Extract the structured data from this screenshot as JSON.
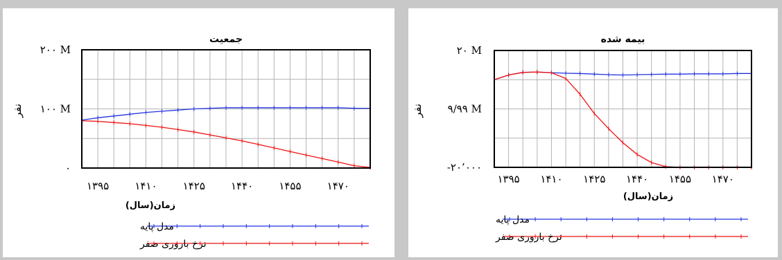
{
  "colors": {
    "base": "#2233dd",
    "zero": "#ee1111"
  },
  "chart_data": [
    {
      "type": "line",
      "title": "جمعیت",
      "ylabel": "نفر",
      "xlabel": "زمان(سال)",
      "xlim": [
        1390,
        1480
      ],
      "ylim": [
        0,
        200
      ],
      "y_ticks": [
        {
          "value": 200,
          "label": "۲۰۰ M"
        },
        {
          "value": 100,
          "label": "۱۰۰ M"
        },
        {
          "value": 0,
          "label": "۰"
        }
      ],
      "x_ticks": [
        {
          "value": 1395,
          "label": "۱۳۹۵"
        },
        {
          "value": 1410,
          "label": "۱۴۱۰"
        },
        {
          "value": 1425,
          "label": "۱۴۲۵"
        },
        {
          "value": 1440,
          "label": "۱۴۴۰"
        },
        {
          "value": 1455,
          "label": "۱۴۵۵"
        },
        {
          "value": 1470,
          "label": "۱۴۷۰"
        }
      ],
      "grid": true,
      "series": [
        {
          "name": "مدل پایه",
          "x": [
            1390,
            1395,
            1400,
            1405,
            1410,
            1415,
            1420,
            1425,
            1430,
            1435,
            1440,
            1445,
            1450,
            1455,
            1460,
            1465,
            1470,
            1475,
            1480
          ],
          "y": [
            81,
            85,
            88,
            91,
            94,
            96,
            98,
            100,
            101,
            102,
            102,
            102,
            102,
            102,
            102,
            102,
            102,
            101,
            101
          ]
        },
        {
          "name": "نرخ باروری صفر",
          "x": [
            1390,
            1395,
            1400,
            1405,
            1410,
            1415,
            1420,
            1425,
            1430,
            1435,
            1440,
            1445,
            1450,
            1455,
            1460,
            1465,
            1470,
            1475,
            1480
          ],
          "y": [
            80,
            79,
            77,
            75,
            72,
            69,
            65,
            61,
            56,
            51,
            46,
            40,
            34,
            28,
            22,
            16,
            10,
            4,
            1
          ]
        }
      ]
    },
    {
      "type": "line",
      "title": "بیمه شده",
      "ylabel": "نفر",
      "xlabel": "زمان(سال)",
      "xlim": [
        1390,
        1480
      ],
      "ylim": [
        -20000,
        20000000
      ],
      "y_ticks": [
        {
          "value": 20000000,
          "label": "۲۰ M"
        },
        {
          "value": 9990000,
          "label": "۹/۹۹ M"
        },
        {
          "value": -20000,
          "label": "-۲۰٬۰۰۰"
        }
      ],
      "x_ticks": [
        {
          "value": 1395,
          "label": "۱۳۹۵"
        },
        {
          "value": 1410,
          "label": "۱۴۱۰"
        },
        {
          "value": 1425,
          "label": "۱۴۲۵"
        },
        {
          "value": 1440,
          "label": "۱۴۴۰"
        },
        {
          "value": 1455,
          "label": "۱۴۵۵"
        },
        {
          "value": 1470,
          "label": "۱۴۷۰"
        }
      ],
      "grid": true,
      "series": [
        {
          "name": "مدل پایه",
          "x": [
            1390,
            1395,
            1400,
            1405,
            1410,
            1415,
            1420,
            1425,
            1430,
            1435,
            1440,
            1445,
            1450,
            1455,
            1460,
            1465,
            1470,
            1475,
            1480
          ],
          "y": [
            15000000,
            15800000,
            16250000,
            16300000,
            16200000,
            16100000,
            16050000,
            15950000,
            15850000,
            15800000,
            15850000,
            15900000,
            15950000,
            15950000,
            16000000,
            16000000,
            16000000,
            16050000,
            16050000
          ]
        },
        {
          "name": "نرخ باروری صفر",
          "x": [
            1390,
            1395,
            1400,
            1405,
            1410,
            1415,
            1420,
            1425,
            1430,
            1435,
            1440,
            1445,
            1450,
            1455,
            1460,
            1465,
            1470,
            1475,
            1480
          ],
          "y": [
            15000000,
            15800000,
            16250000,
            16300000,
            16200000,
            15200000,
            12500000,
            9200000,
            6600000,
            4200000,
            2200000,
            800000,
            100000,
            -10000,
            -20000,
            -20000,
            -20000,
            -20000,
            -20000
          ]
        }
      ]
    }
  ]
}
